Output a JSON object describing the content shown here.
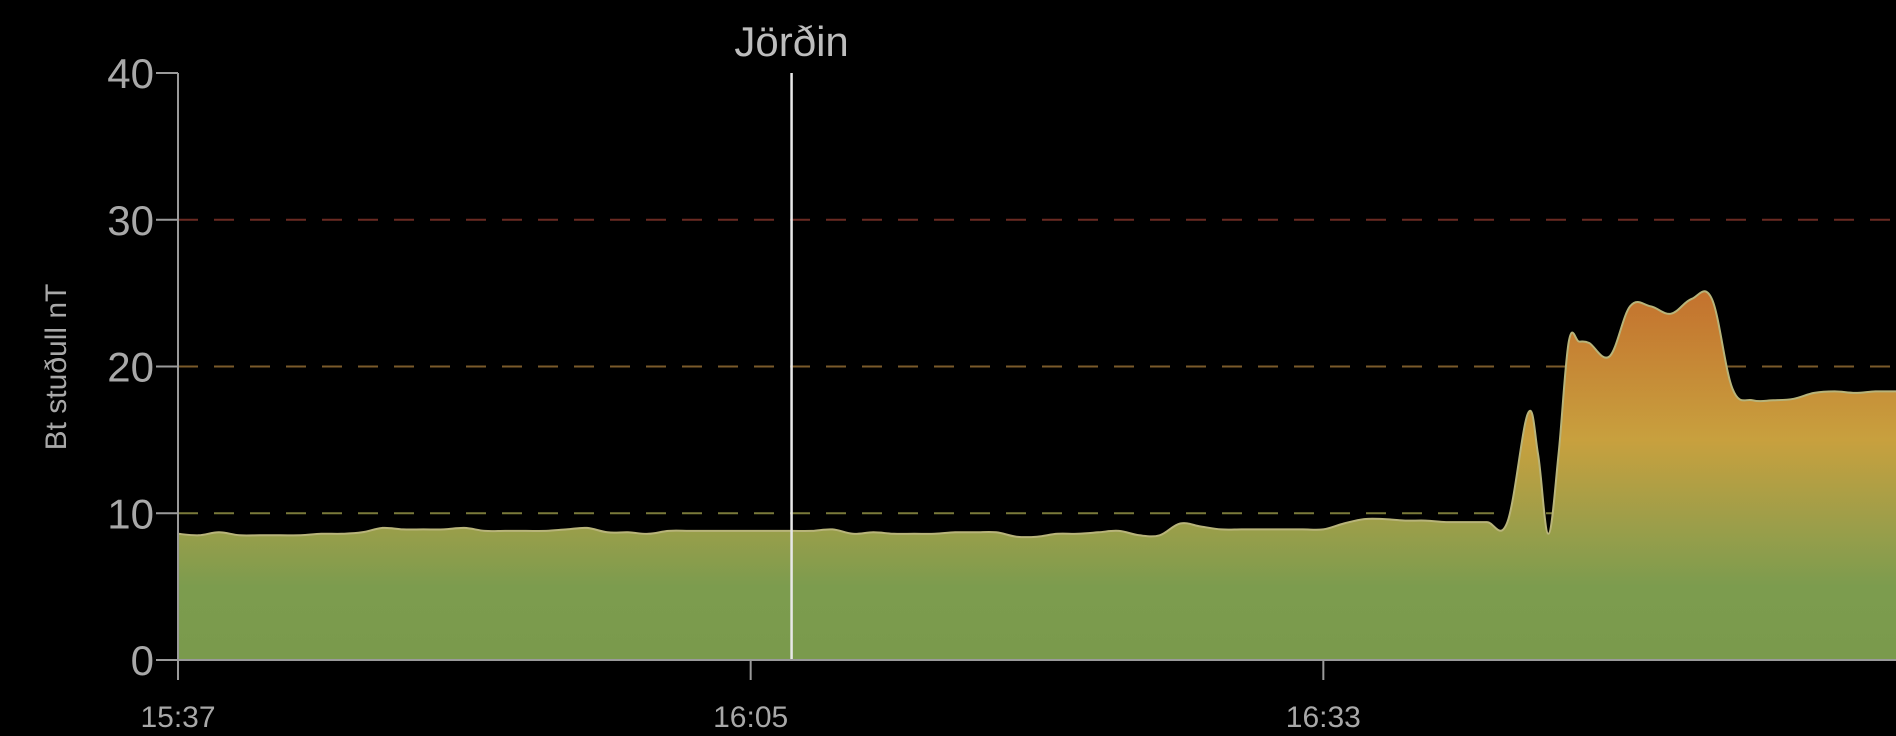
{
  "chart_data": {
    "type": "area",
    "title": "",
    "ylabel": "Bt stuðull nT",
    "xlabel": "",
    "ylim": [
      0,
      40
    ],
    "yticks": [
      0,
      10,
      20,
      30,
      40
    ],
    "xlim": [
      0,
      84
    ],
    "xticks": [
      {
        "x": 0,
        "label": "15:37"
      },
      {
        "x": 28,
        "label": "16:05"
      },
      {
        "x": 56,
        "label": "16:33"
      }
    ],
    "grid": "horizontal-dashed",
    "thresholds": [
      {
        "value": 10,
        "color": "#7a7a3a"
      },
      {
        "value": 20,
        "color": "#7a5a2a"
      },
      {
        "value": 30,
        "color": "#6a2a22"
      }
    ],
    "marker": {
      "x": 30,
      "label": "Jörðin"
    },
    "gradient_stops": [
      {
        "value": 0,
        "color": "#7a9a4c"
      },
      {
        "value": 5,
        "color": "#7c9c4e"
      },
      {
        "value": 9,
        "color": "#9a9e4a"
      },
      {
        "value": 15,
        "color": "#c8a03e"
      },
      {
        "value": 25,
        "color": "#c4722e"
      }
    ],
    "series": [
      {
        "x": [
          0,
          1,
          2,
          3,
          4,
          5,
          6,
          7,
          8,
          9,
          10,
          11,
          12,
          13,
          14,
          15,
          16,
          17,
          18,
          19,
          20,
          21,
          22,
          23,
          24,
          25,
          26,
          27,
          28,
          29,
          30,
          31,
          32,
          33,
          34,
          35,
          36,
          37,
          38,
          39,
          40,
          41,
          42,
          43,
          44,
          45,
          46,
          47,
          48,
          49,
          50,
          51,
          52,
          53,
          54,
          55,
          56,
          57,
          58,
          59,
          60,
          61,
          62,
          63,
          64,
          65,
          66,
          66.5,
          67,
          67.5,
          68,
          68.5,
          69,
          70,
          71,
          72,
          73,
          74,
          75,
          76,
          77,
          78,
          79,
          80,
          81,
          82,
          83,
          84
        ],
        "values": [
          8.6,
          8.5,
          8.7,
          8.5,
          8.5,
          8.5,
          8.5,
          8.6,
          8.6,
          8.7,
          9.0,
          8.9,
          8.9,
          8.9,
          9.0,
          8.8,
          8.8,
          8.8,
          8.8,
          8.9,
          9.0,
          8.7,
          8.7,
          8.6,
          8.8,
          8.8,
          8.8,
          8.8,
          8.8,
          8.8,
          8.8,
          8.8,
          8.9,
          8.6,
          8.7,
          8.6,
          8.6,
          8.6,
          8.7,
          8.7,
          8.7,
          8.4,
          8.4,
          8.6,
          8.6,
          8.7,
          8.8,
          8.5,
          8.5,
          9.3,
          9.1,
          8.9,
          8.9,
          8.9,
          8.9,
          8.9,
          8.9,
          9.3,
          9.6,
          9.6,
          9.5,
          9.5,
          9.4,
          9.4,
          9.4,
          9.4,
          16.8,
          14.0,
          8.6,
          14.0,
          21.7,
          21.7,
          21.6,
          20.7,
          24.1,
          24.1,
          23.6,
          24.6,
          24.6,
          18.5,
          17.7,
          17.7,
          17.8,
          18.2,
          18.3,
          18.2,
          18.3,
          18.3
        ]
      }
    ]
  }
}
